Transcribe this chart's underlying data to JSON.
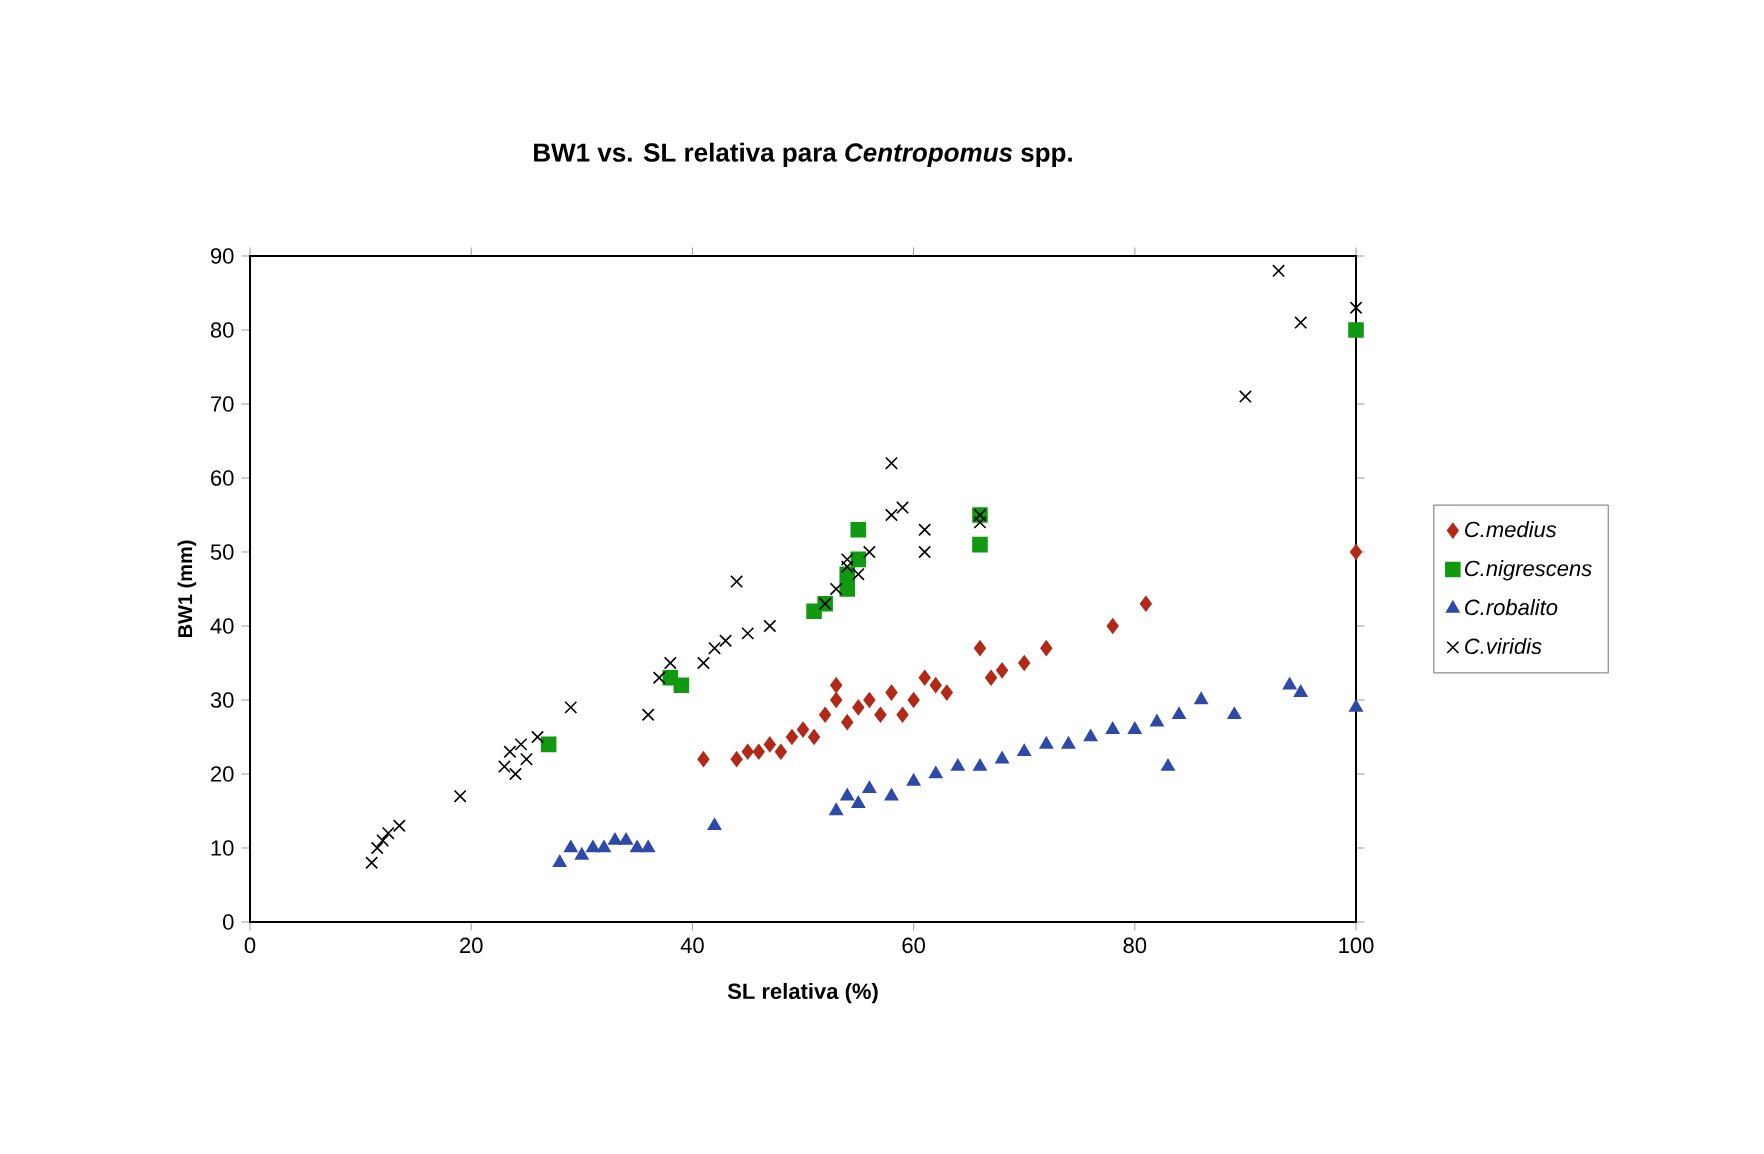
{
  "chart_data": {
    "type": "scatter",
    "title": "BW1 vs. SL relativa para *Centropomus* spp.",
    "xlabel": "SL relativa (%)",
    "ylabel": "BW1 (mm)",
    "xlim": [
      0,
      100
    ],
    "ylim": [
      0,
      90
    ],
    "xticks": [
      0,
      20,
      40,
      60,
      80,
      100
    ],
    "yticks": [
      0,
      10,
      20,
      30,
      40,
      50,
      60,
      70,
      80,
      90
    ],
    "legend": "right",
    "grid": false,
    "series": [
      {
        "name": "C.medius",
        "color": "#b22a17",
        "marker": "diamond",
        "x": [
          41,
          44,
          45,
          46,
          47,
          48,
          49,
          50,
          51,
          52,
          53,
          53,
          54,
          55,
          56,
          57,
          58,
          59,
          60,
          61,
          62,
          63,
          66,
          67,
          68,
          70,
          72,
          78,
          81,
          100
        ],
        "values": [
          22,
          22,
          23,
          23,
          24,
          23,
          25,
          26,
          25,
          28,
          30,
          32,
          27,
          29,
          30,
          28,
          31,
          28,
          30,
          33,
          32,
          31,
          37,
          33,
          34,
          35,
          37,
          40,
          43,
          50
        ]
      },
      {
        "name": "C.nigrescens",
        "color": "#119911",
        "marker": "square",
        "x": [
          27,
          38,
          39,
          51,
          52,
          54,
          54,
          55,
          55,
          66,
          66,
          100
        ],
        "values": [
          24,
          33,
          32,
          42,
          43,
          45,
          47,
          49,
          53,
          55,
          51,
          80
        ]
      },
      {
        "name": "C.robalito",
        "color": "#2e4aa8",
        "marker": "triangle",
        "x": [
          28,
          29,
          30,
          31,
          32,
          33,
          34,
          35,
          36,
          42,
          53,
          54,
          55,
          56,
          58,
          60,
          62,
          64,
          66,
          68,
          70,
          72,
          74,
          76,
          78,
          80,
          82,
          83,
          84,
          86,
          89,
          94,
          95,
          100
        ],
        "values": [
          8,
          10,
          9,
          10,
          10,
          11,
          11,
          10,
          10,
          13,
          15,
          17,
          16,
          18,
          17,
          19,
          20,
          21,
          21,
          22,
          23,
          24,
          24,
          25,
          26,
          26,
          27,
          21,
          28,
          30,
          28,
          32,
          31,
          29
        ]
      },
      {
        "name": "C.viridis",
        "color": "#000000",
        "marker": "cross",
        "x": [
          11,
          11.5,
          12,
          12.5,
          13.5,
          19,
          23,
          23.5,
          24,
          24.5,
          25,
          26,
          29,
          36,
          37,
          38,
          41,
          42,
          43,
          44,
          45,
          47,
          52,
          53,
          54,
          54,
          55,
          56,
          58,
          58,
          59,
          61,
          61,
          66,
          66,
          90,
          93,
          95,
          100
        ],
        "values": [
          8,
          10,
          11,
          12,
          13,
          17,
          21,
          23,
          20,
          24,
          22,
          25,
          29,
          28,
          33,
          35,
          35,
          37,
          38,
          46,
          39,
          40,
          43,
          45,
          48,
          49,
          47,
          50,
          55,
          62,
          56,
          53,
          50,
          54,
          55,
          71,
          88,
          81,
          83
        ]
      }
    ]
  }
}
